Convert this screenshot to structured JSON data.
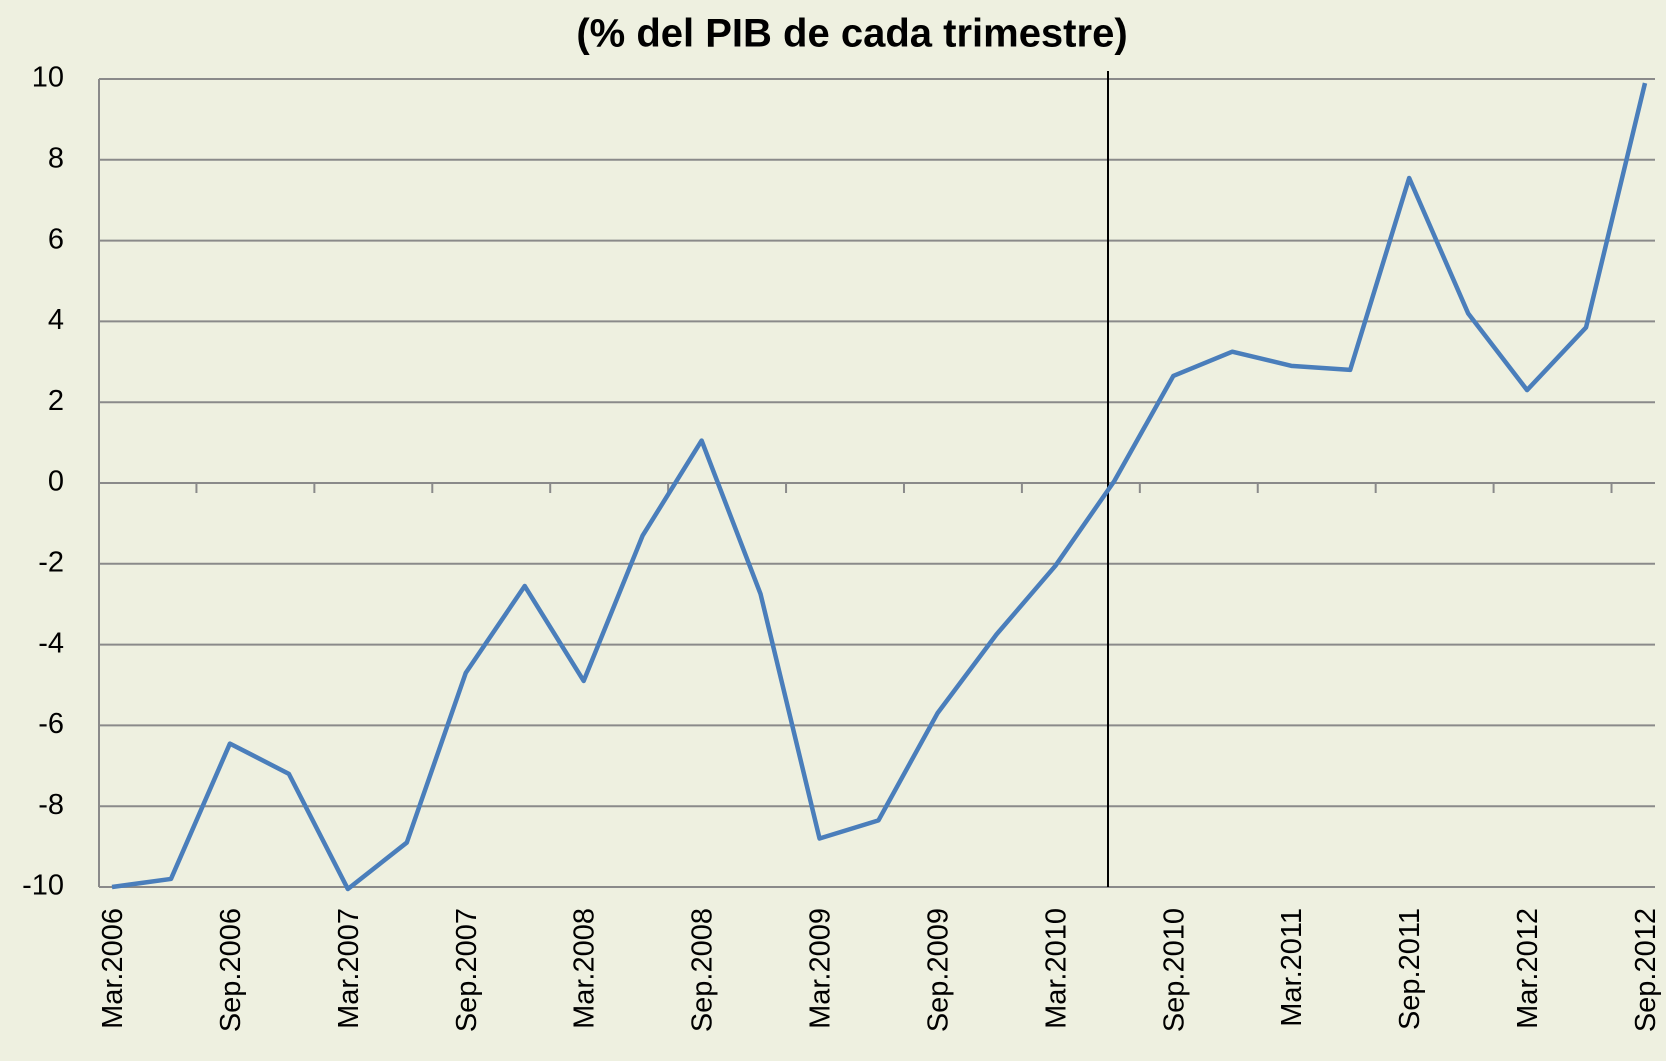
{
  "chart_data": {
    "type": "line",
    "title": "(% del PIB de cada trimestre)",
    "categories": [
      "Mar.2006",
      null,
      "Sep.2006",
      null,
      "Mar.2007",
      null,
      "Sep.2007",
      null,
      "Mar.2008",
      null,
      "Sep.2008",
      null,
      "Mar.2009",
      null,
      "Sep.2009",
      null,
      "Mar.2010",
      null,
      "Sep.2010",
      null,
      "Mar.2011",
      null,
      "Sep.2011",
      null,
      "Mar.2012",
      null,
      "Sep.2012"
    ],
    "values": [
      -10,
      -9.8,
      -6.45,
      -7.2,
      -10.05,
      -8.9,
      -4.7,
      -2.55,
      -4.9,
      -1.3,
      1.05,
      -2.75,
      -8.8,
      -8.35,
      -5.7,
      -3.75,
      -2.05,
      0.05,
      2.65,
      3.25,
      2.9,
      2.8,
      7.55,
      4.2,
      2.3,
      3.85,
      9.9
    ],
    "color": "#4a7ebb",
    "ylim": [
      -10,
      10
    ],
    "yticks": [
      -10,
      -8,
      -6,
      -4,
      -2,
      0,
      2,
      4,
      6,
      8,
      10
    ],
    "grid": true
  }
}
